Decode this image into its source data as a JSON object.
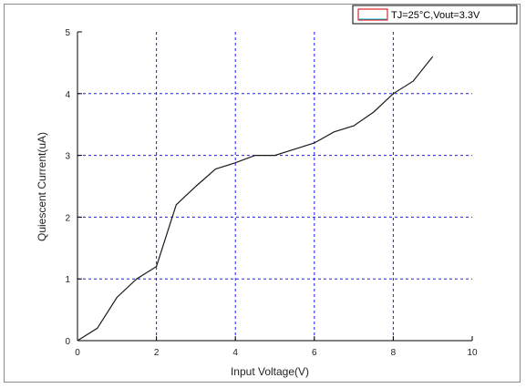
{
  "chart_data": {
    "type": "line",
    "xlabel": "Input Voltage(V)",
    "ylabel": "Quiescent Current(uA)",
    "xlim": [
      0,
      10
    ],
    "ylim": [
      0,
      5
    ],
    "x_ticks": [
      0,
      2,
      4,
      6,
      8,
      10
    ],
    "y_ticks": [
      0,
      1,
      2,
      3,
      4,
      5
    ],
    "x_tick_labels": [
      "0",
      "2",
      "4",
      "6",
      "8",
      "10"
    ],
    "y_tick_labels": [
      "0",
      "1",
      "2",
      "3",
      "4",
      "5"
    ],
    "grid": true,
    "grid_color": "#1a1aff",
    "legend_position": "top-right",
    "series": [
      {
        "name": "TJ=25°C,Vout=3.3V",
        "color": "#1a1a1a",
        "legend_color": "#cc0000",
        "x": [
          0,
          0.5,
          1.0,
          1.5,
          2.0,
          2.5,
          3.0,
          3.5,
          4.0,
          4.5,
          5.0,
          5.5,
          6.0,
          6.5,
          7.0,
          7.5,
          8.0,
          8.5,
          9.0
        ],
        "y": [
          0,
          0.2,
          0.7,
          1.0,
          1.2,
          2.2,
          2.5,
          2.78,
          2.88,
          3.0,
          3.0,
          3.1,
          3.2,
          3.38,
          3.48,
          3.7,
          4.0,
          4.2,
          4.6
        ]
      }
    ]
  }
}
